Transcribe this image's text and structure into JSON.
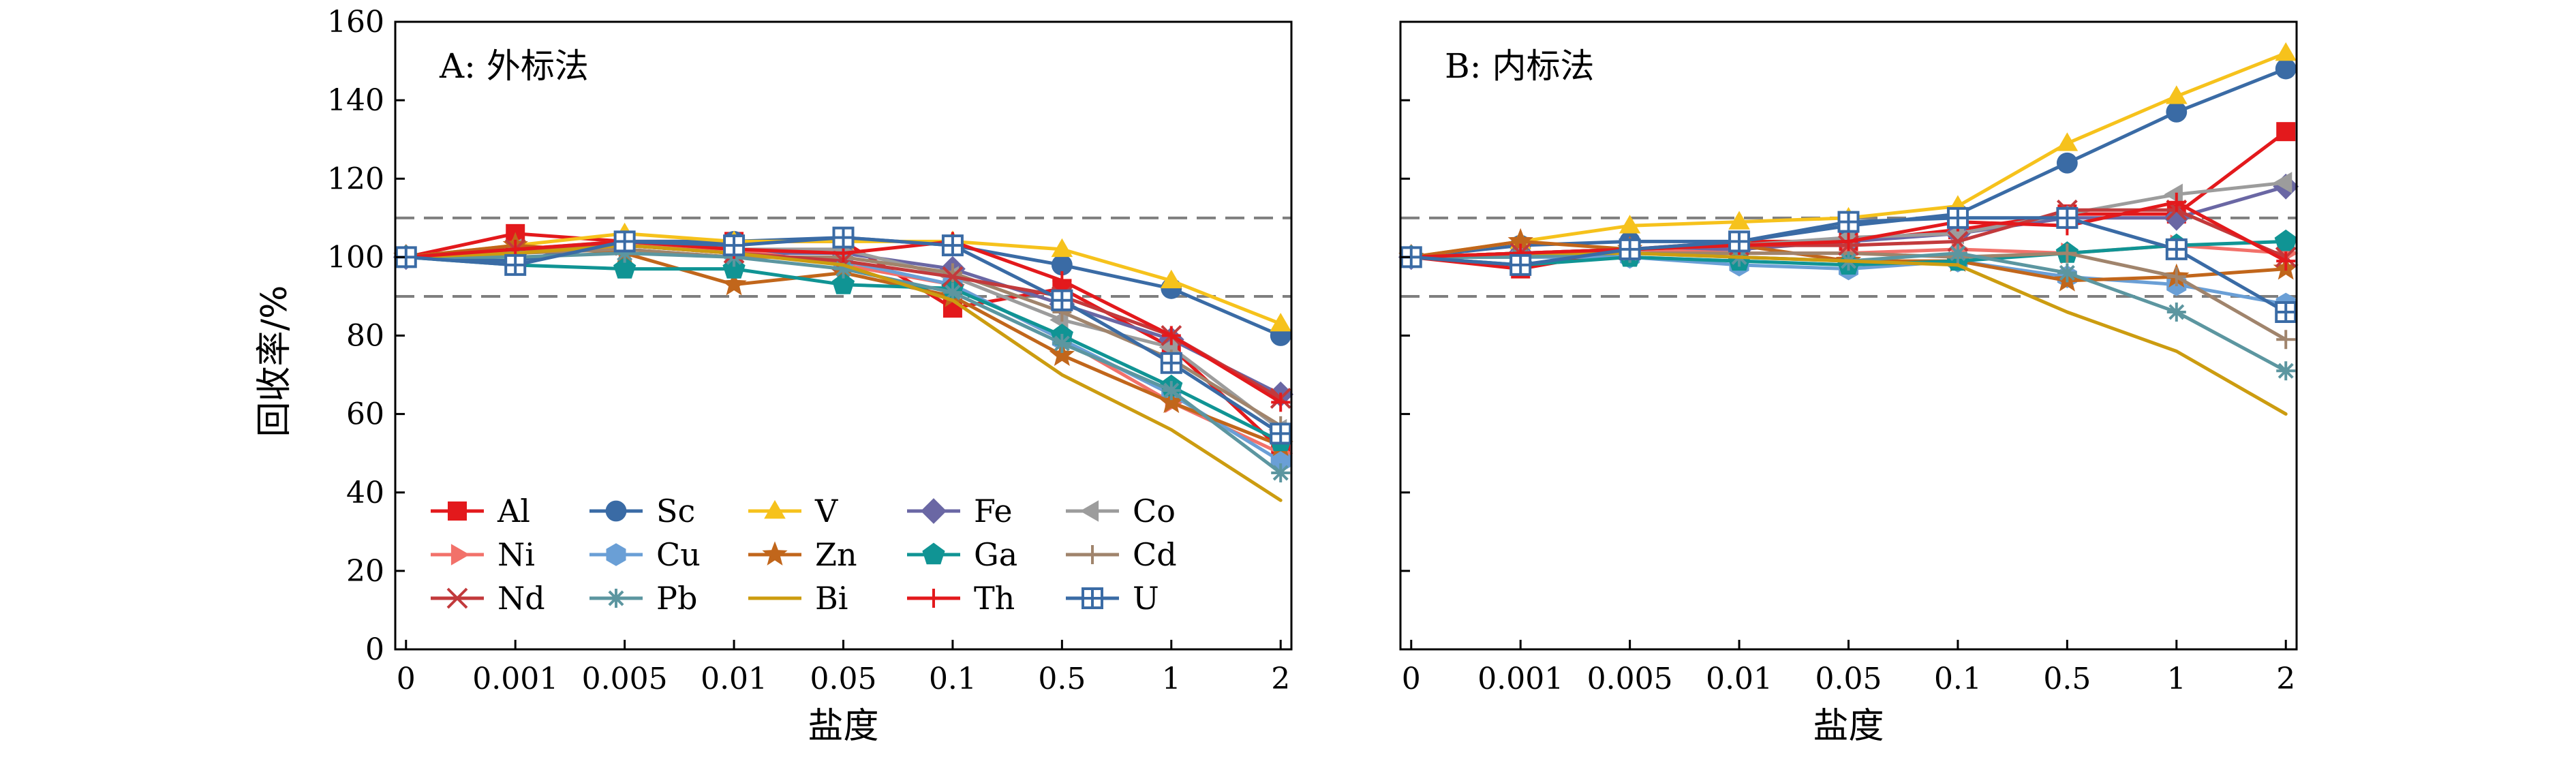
{
  "ylabel": "回收率/%",
  "xlabel": "盐度",
  "ylim": [
    0,
    160
  ],
  "yticks": [
    "0",
    "20",
    "40",
    "60",
    "80",
    "100",
    "120",
    "140",
    "160"
  ],
  "reference_lines": [
    90,
    110
  ],
  "chart_data": [
    {
      "type": "line",
      "title": "A: 外标法",
      "xlabel": "盐度",
      "ylabel": "回收率/%",
      "ylim": [
        0,
        160
      ],
      "categories": [
        "0",
        "0.001",
        "0.005",
        "0.01",
        "0.05",
        "0.1",
        "0.5",
        "1",
        "2"
      ],
      "legend_placement": "bottom-left",
      "grid": false,
      "series": [
        {
          "name": "Al",
          "color": "#e3191c",
          "marker": "square",
          "values": [
            100,
            106,
            104,
            104,
            104,
            87,
            92,
            77,
            51
          ]
        },
        {
          "name": "Sc",
          "color": "#3a6ba5",
          "marker": "circle",
          "values": [
            100,
            99,
            104,
            104,
            105,
            103,
            98,
            92,
            80
          ]
        },
        {
          "name": "V",
          "color": "#f6c21c",
          "marker": "triangle-up",
          "values": [
            100,
            103,
            106,
            104,
            104,
            104,
            102,
            94,
            83
          ]
        },
        {
          "name": "Fe",
          "color": "#6a67a4",
          "marker": "diamond",
          "values": [
            100,
            101,
            103,
            101,
            101,
            97,
            88,
            79,
            65
          ]
        },
        {
          "name": "Co",
          "color": "#9c9c9c",
          "marker": "triangle-left",
          "values": [
            100,
            102,
            104,
            102,
            102,
            95,
            84,
            77,
            56
          ]
        },
        {
          "name": "Ni",
          "color": "#f2716a",
          "marker": "triangle-right",
          "values": [
            100,
            101,
            103,
            102,
            98,
            93,
            79,
            63,
            50
          ]
        },
        {
          "name": "Cu",
          "color": "#6a9fd6",
          "marker": "hexagon",
          "values": [
            100,
            101,
            103,
            101,
            99,
            93,
            79,
            65,
            48
          ]
        },
        {
          "name": "Zn",
          "color": "#c1661b",
          "marker": "star",
          "values": [
            100,
            103,
            101,
            93,
            96,
            90,
            75,
            63,
            52
          ]
        },
        {
          "name": "Ga",
          "color": "#109494",
          "marker": "pentagon",
          "values": [
            100,
            98,
            97,
            97,
            93,
            92,
            80,
            67,
            53
          ]
        },
        {
          "name": "Cd",
          "color": "#a0846c",
          "marker": "plus",
          "values": [
            100,
            101,
            102,
            100,
            100,
            96,
            86,
            74,
            57
          ]
        },
        {
          "name": "Nd",
          "color": "#c23a3c",
          "marker": "x",
          "values": [
            100,
            102,
            103,
            101,
            99,
            95,
            90,
            80,
            64
          ]
        },
        {
          "name": "Pb",
          "color": "#5c96a0",
          "marker": "asterisk",
          "values": [
            100,
            100,
            101,
            100,
            97,
            91,
            78,
            66,
            45
          ]
        },
        {
          "name": "Bi",
          "color": "#cc9c10",
          "marker": "none",
          "values": [
            100,
            101,
            103,
            101,
            98,
            89,
            70,
            56,
            38
          ]
        },
        {
          "name": "Th",
          "color": "#e3191c",
          "marker": "plus",
          "values": [
            100,
            102,
            104,
            102,
            101,
            104,
            94,
            80,
            63
          ]
        },
        {
          "name": "U",
          "color": "#3a6ba5",
          "marker": "square-grid",
          "values": [
            100,
            98,
            104,
            103,
            105,
            103,
            89,
            73,
            55
          ]
        }
      ]
    },
    {
      "type": "line",
      "title": "B: 内标法",
      "xlabel": "盐度",
      "ylabel": "",
      "ylim": [
        0,
        160
      ],
      "categories": [
        "0",
        "0.001",
        "0.005",
        "0.01",
        "0.05",
        "0.1",
        "0.5",
        "1",
        "2"
      ],
      "grid": false,
      "series": [
        {
          "name": "Al",
          "color": "#e3191c",
          "marker": "square",
          "values": [
            100,
            97,
            102,
            104,
            104,
            107,
            111,
            111,
            132
          ]
        },
        {
          "name": "Sc",
          "color": "#3a6ba5",
          "marker": "circle",
          "values": [
            100,
            103,
            104,
            104,
            108,
            111,
            124,
            137,
            148
          ]
        },
        {
          "name": "V",
          "color": "#f6c21c",
          "marker": "triangle-up",
          "values": [
            100,
            104,
            108,
            109,
            110,
            113,
            129,
            141,
            152
          ]
        },
        {
          "name": "Fe",
          "color": "#6a67a4",
          "marker": "diamond",
          "values": [
            100,
            101,
            102,
            102,
            104,
            106,
            110,
            110,
            118
          ]
        },
        {
          "name": "Co",
          "color": "#9c9c9c",
          "marker": "triangle-left",
          "values": [
            100,
            101,
            102,
            103,
            105,
            106,
            111,
            116,
            119
          ]
        },
        {
          "name": "Ni",
          "color": "#f2716a",
          "marker": "triangle-right",
          "values": [
            100,
            100,
            102,
            101,
            101,
            102,
            101,
            103,
            101
          ]
        },
        {
          "name": "Cu",
          "color": "#6a9fd6",
          "marker": "hexagon",
          "values": [
            100,
            100,
            100,
            98,
            97,
            99,
            95,
            93,
            88
          ]
        },
        {
          "name": "Zn",
          "color": "#c1661b",
          "marker": "star",
          "values": [
            100,
            104,
            102,
            103,
            99,
            99,
            94,
            95,
            97
          ]
        },
        {
          "name": "Ga",
          "color": "#109494",
          "marker": "pentagon",
          "values": [
            100,
            98,
            100,
            99,
            98,
            99,
            101,
            103,
            104
          ]
        },
        {
          "name": "Cd",
          "color": "#a0846c",
          "marker": "plus",
          "values": [
            100,
            101,
            101,
            101,
            101,
            100,
            101,
            95,
            79
          ]
        },
        {
          "name": "Nd",
          "color": "#c23a3c",
          "marker": "x",
          "values": [
            100,
            101,
            102,
            103,
            103,
            104,
            112,
            112,
            100
          ]
        },
        {
          "name": "Pb",
          "color": "#5c96a0",
          "marker": "asterisk",
          "values": [
            100,
            100,
            101,
            100,
            99,
            101,
            96,
            86,
            71
          ]
        },
        {
          "name": "Bi",
          "color": "#cc9c10",
          "marker": "none",
          "values": [
            100,
            101,
            101,
            100,
            99,
            98,
            86,
            76,
            60
          ]
        },
        {
          "name": "Th",
          "color": "#e3191c",
          "marker": "plus",
          "values": [
            100,
            101,
            102,
            103,
            104,
            109,
            108,
            114,
            99
          ]
        },
        {
          "name": "U",
          "color": "#3a6ba5",
          "marker": "square-grid",
          "values": [
            100,
            98,
            102,
            104,
            109,
            110,
            110,
            102,
            86
          ]
        }
      ]
    }
  ]
}
